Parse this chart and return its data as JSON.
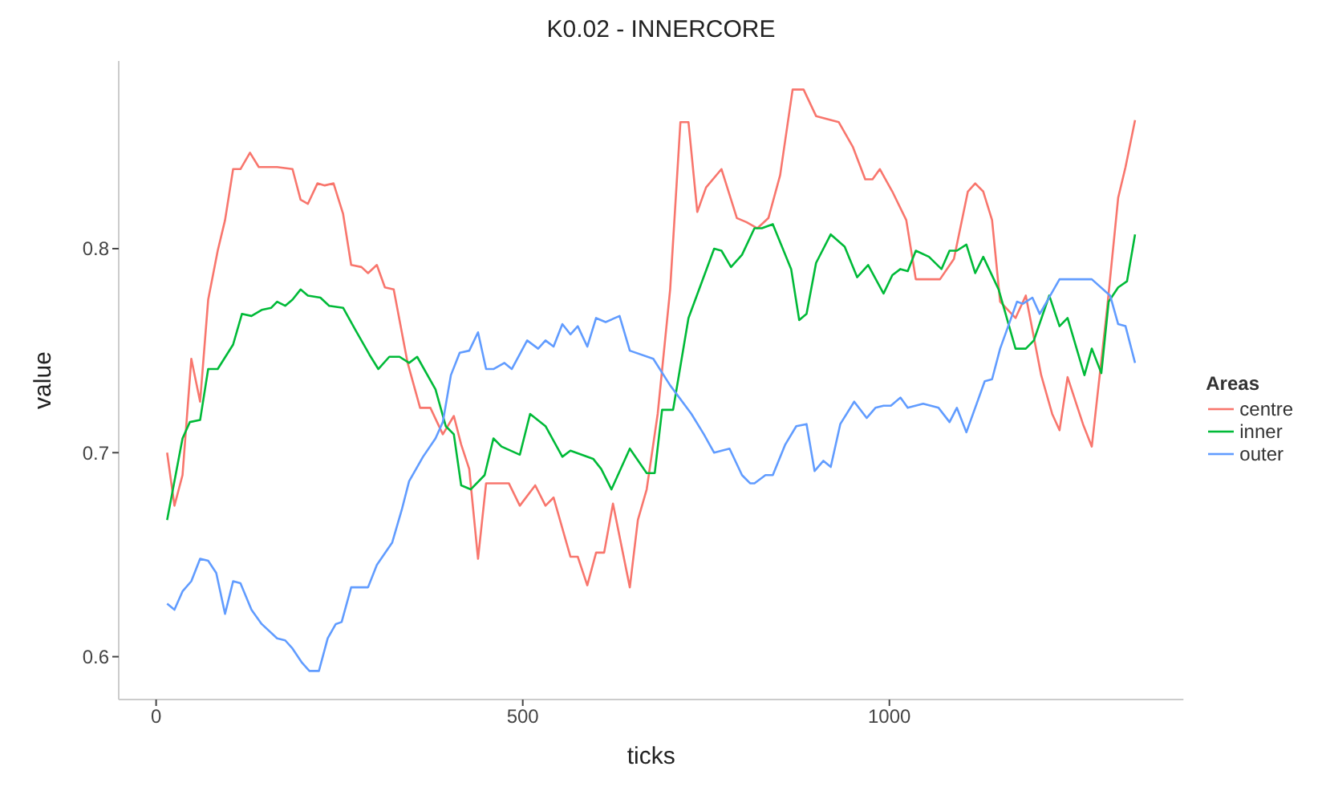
{
  "chart_data": {
    "type": "line",
    "title": "K0.02 - INNERCORE",
    "xlabel": "ticks",
    "ylabel": "value",
    "legend_title": "Areas",
    "xlim": [
      -51,
      1401
    ],
    "ylim": [
      0.579,
      0.892
    ],
    "xticks": [
      0,
      500,
      1000
    ],
    "yticks": [
      0.6,
      0.7,
      0.8
    ],
    "grid": false,
    "legend": "right",
    "marker": "none",
    "line_style": "solid",
    "series": [
      {
        "name": "centre",
        "color": "#f8766d",
        "x": [
          15,
          25,
          36,
          48,
          60,
          71,
          84,
          94,
          105,
          115,
          128,
          140,
          165,
          186,
          197,
          207,
          220,
          230,
          242,
          255,
          266,
          280,
          289,
          301,
          312,
          324,
          343,
          360,
          374,
          391,
          406,
          416,
          427,
          439,
          450,
          481,
          496,
          517,
          531,
          542,
          565,
          575,
          588,
          600,
          611,
          623,
          646,
          657,
          669,
          684,
          701,
          715,
          726,
          738,
          750,
          771,
          792,
          805,
          820,
          835,
          851,
          868,
          883,
          900,
          931,
          950,
          967,
          977,
          987,
          1004,
          1023,
          1036,
          1069,
          1088,
          1107,
          1117,
          1128,
          1140,
          1151,
          1172,
          1186,
          1207,
          1222,
          1232,
          1243,
          1264,
          1276,
          1297,
          1312,
          1322,
          1335
        ],
        "values": [
          0.7,
          0.674,
          0.689,
          0.746,
          0.725,
          0.775,
          0.799,
          0.814,
          0.839,
          0.839,
          0.847,
          0.84,
          0.84,
          0.839,
          0.824,
          0.822,
          0.832,
          0.831,
          0.832,
          0.817,
          0.792,
          0.791,
          0.788,
          0.792,
          0.781,
          0.78,
          0.744,
          0.722,
          0.722,
          0.709,
          0.718,
          0.704,
          0.692,
          0.648,
          0.685,
          0.685,
          0.674,
          0.684,
          0.674,
          0.678,
          0.649,
          0.649,
          0.635,
          0.651,
          0.651,
          0.675,
          0.634,
          0.667,
          0.682,
          0.719,
          0.78,
          0.862,
          0.862,
          0.818,
          0.83,
          0.839,
          0.815,
          0.813,
          0.81,
          0.815,
          0.836,
          0.878,
          0.878,
          0.865,
          0.862,
          0.85,
          0.834,
          0.834,
          0.839,
          0.828,
          0.814,
          0.785,
          0.785,
          0.795,
          0.828,
          0.832,
          0.828,
          0.814,
          0.774,
          0.766,
          0.777,
          0.738,
          0.719,
          0.711,
          0.737,
          0.714,
          0.703,
          0.771,
          0.825,
          0.84,
          0.863
        ]
      },
      {
        "name": "inner",
        "color": "#00ba38",
        "x": [
          15,
          36,
          46,
          60,
          71,
          84,
          105,
          117,
          130,
          144,
          157,
          165,
          176,
          186,
          197,
          207,
          224,
          236,
          255,
          272,
          291,
          303,
          318,
          332,
          345,
          356,
          381,
          395,
          406,
          416,
          429,
          448,
          460,
          471,
          496,
          510,
          531,
          554,
          565,
          596,
          607,
          621,
          646,
          669,
          680,
          690,
          705,
          726,
          761,
          771,
          784,
          799,
          816,
          826,
          841,
          866,
          877,
          887,
          900,
          920,
          939,
          956,
          971,
          992,
          1004,
          1015,
          1025,
          1036,
          1054,
          1071,
          1082,
          1092,
          1105,
          1117,
          1128,
          1149,
          1172,
          1186,
          1197,
          1218,
          1232,
          1243,
          1266,
          1276,
          1289,
          1299,
          1312,
          1324,
          1335
        ],
        "values": [
          0.667,
          0.707,
          0.715,
          0.716,
          0.741,
          0.741,
          0.753,
          0.768,
          0.767,
          0.77,
          0.771,
          0.774,
          0.772,
          0.775,
          0.78,
          0.777,
          0.776,
          0.772,
          0.771,
          0.76,
          0.748,
          0.741,
          0.747,
          0.747,
          0.744,
          0.747,
          0.731,
          0.713,
          0.709,
          0.684,
          0.682,
          0.689,
          0.707,
          0.703,
          0.699,
          0.719,
          0.713,
          0.698,
          0.701,
          0.697,
          0.692,
          0.682,
          0.702,
          0.69,
          0.69,
          0.721,
          0.721,
          0.766,
          0.8,
          0.799,
          0.791,
          0.797,
          0.81,
          0.81,
          0.812,
          0.79,
          0.765,
          0.768,
          0.793,
          0.807,
          0.801,
          0.786,
          0.792,
          0.778,
          0.787,
          0.79,
          0.789,
          0.799,
          0.796,
          0.79,
          0.799,
          0.799,
          0.802,
          0.788,
          0.796,
          0.78,
          0.751,
          0.751,
          0.755,
          0.777,
          0.762,
          0.766,
          0.738,
          0.751,
          0.739,
          0.774,
          0.781,
          0.784,
          0.807
        ]
      },
      {
        "name": "outer",
        "color": "#619cff",
        "x": [
          15,
          25,
          36,
          48,
          60,
          71,
          82,
          94,
          105,
          115,
          130,
          144,
          165,
          176,
          186,
          199,
          209,
          222,
          234,
          245,
          253,
          266,
          289,
          301,
          322,
          335,
          345,
          364,
          381,
          391,
          402,
          414,
          427,
          439,
          450,
          460,
          475,
          485,
          506,
          521,
          531,
          542,
          554,
          565,
          575,
          588,
          600,
          613,
          632,
          646,
          678,
          701,
          730,
          747,
          761,
          782,
          799,
          810,
          816,
          831,
          841,
          858,
          873,
          887,
          898,
          910,
          920,
          933,
          952,
          969,
          981,
          992,
          1002,
          1015,
          1025,
          1046,
          1067,
          1082,
          1092,
          1105,
          1117,
          1130,
          1140,
          1151,
          1174,
          1182,
          1195,
          1205,
          1232,
          1276,
          1301,
          1312,
          1322,
          1335
        ],
        "values": [
          0.626,
          0.623,
          0.632,
          0.637,
          0.648,
          0.647,
          0.641,
          0.621,
          0.637,
          0.636,
          0.623,
          0.616,
          0.609,
          0.608,
          0.604,
          0.597,
          0.593,
          0.593,
          0.609,
          0.616,
          0.617,
          0.634,
          0.634,
          0.645,
          0.656,
          0.672,
          0.686,
          0.698,
          0.707,
          0.715,
          0.738,
          0.749,
          0.75,
          0.759,
          0.741,
          0.741,
          0.744,
          0.741,
          0.755,
          0.751,
          0.755,
          0.752,
          0.763,
          0.758,
          0.762,
          0.752,
          0.766,
          0.764,
          0.767,
          0.75,
          0.746,
          0.733,
          0.719,
          0.709,
          0.7,
          0.702,
          0.689,
          0.685,
          0.685,
          0.689,
          0.689,
          0.704,
          0.713,
          0.714,
          0.691,
          0.696,
          0.693,
          0.714,
          0.725,
          0.717,
          0.722,
          0.723,
          0.723,
          0.727,
          0.722,
          0.724,
          0.722,
          0.715,
          0.722,
          0.71,
          0.722,
          0.735,
          0.736,
          0.751,
          0.774,
          0.773,
          0.776,
          0.768,
          0.785,
          0.785,
          0.777,
          0.763,
          0.762,
          0.744
        ]
      }
    ]
  }
}
